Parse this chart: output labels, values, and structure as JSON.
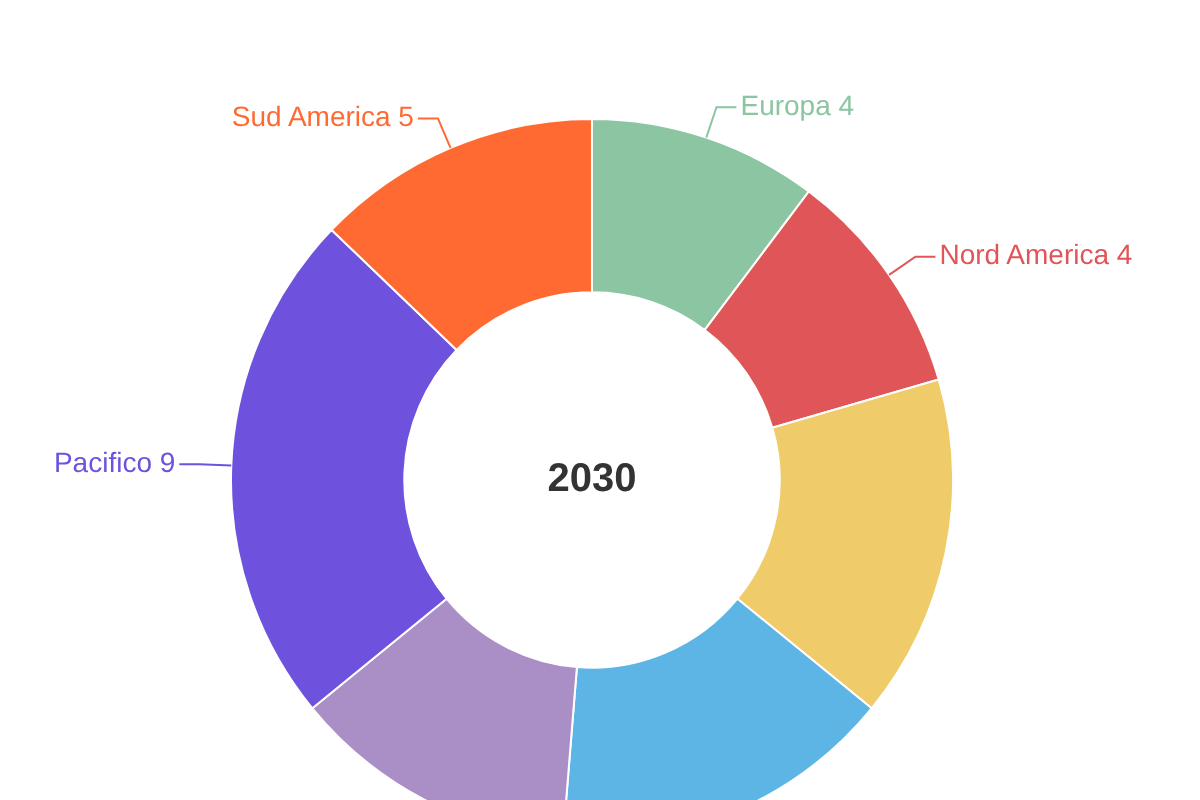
{
  "chart_data": {
    "type": "donut",
    "title": "2030",
    "categories": [
      "Europa",
      "Nord America",
      null,
      null,
      null,
      "Pacifico",
      "Sud America"
    ],
    "values": [
      4,
      4,
      6,
      6,
      5,
      9,
      5
    ],
    "value_labels": [
      "4",
      "4",
      null,
      null,
      null,
      "9",
      "5"
    ],
    "colors": [
      "#8cc5a2",
      "#e05558",
      "#f0cb69",
      "#5db5e5",
      "#a98fc6",
      "#6e52dd",
      "#ff6a33"
    ]
  }
}
